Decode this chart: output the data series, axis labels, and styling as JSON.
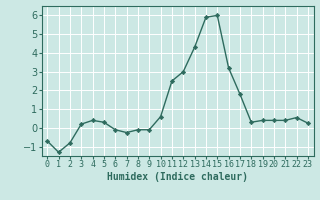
{
  "x": [
    0,
    1,
    2,
    3,
    4,
    5,
    6,
    7,
    8,
    9,
    10,
    11,
    12,
    13,
    14,
    15,
    16,
    17,
    18,
    19,
    20,
    21,
    22,
    23
  ],
  "y": [
    -0.7,
    -1.3,
    -0.8,
    0.2,
    0.4,
    0.3,
    -0.1,
    -0.25,
    -0.1,
    -0.1,
    0.6,
    2.5,
    3.0,
    4.3,
    5.9,
    6.0,
    3.2,
    1.8,
    0.3,
    0.4,
    0.4,
    0.4,
    0.55,
    0.25
  ],
  "line_color": "#2e6b5e",
  "marker": "D",
  "marker_size": 2.2,
  "linewidth": 1.0,
  "xlabel": "Humidex (Indice chaleur)",
  "ylim": [
    -1.5,
    6.5
  ],
  "xlim": [
    -0.5,
    23.5
  ],
  "yticks": [
    -1,
    0,
    1,
    2,
    3,
    4,
    5,
    6
  ],
  "xtick_labels": [
    "0",
    "1",
    "2",
    "3",
    "4",
    "5",
    "6",
    "7",
    "8",
    "9",
    "10",
    "11",
    "12",
    "13",
    "14",
    "15",
    "16",
    "17",
    "18",
    "19",
    "20",
    "21",
    "22",
    "23"
  ],
  "bg_color": "#cce8e4",
  "grid_color": "#ffffff",
  "spine_color": "#2e6b5e",
  "xlabel_fontsize": 7,
  "ytick_fontsize": 7,
  "xtick_fontsize": 6
}
